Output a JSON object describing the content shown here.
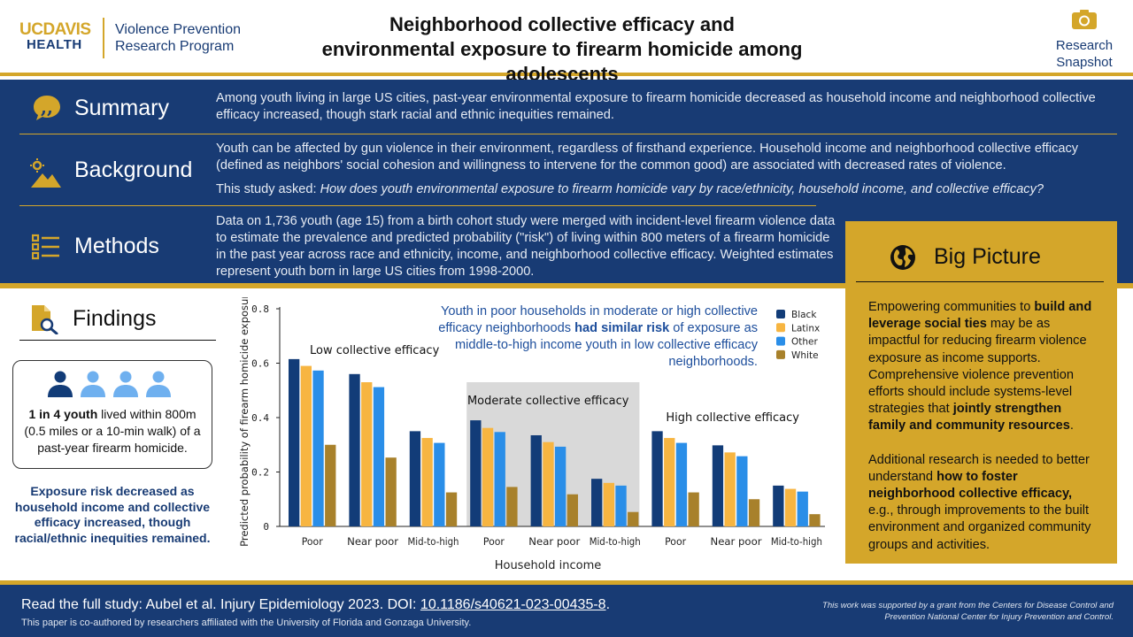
{
  "header": {
    "logo_top": "UCDAVIS",
    "logo_bottom": "HEALTH",
    "program_line1": "Violence Prevention",
    "program_line2": "Research Program",
    "title_line1": "Neighborhood collective efficacy and",
    "title_line2": "environmental exposure to firearm homicide among adolescents",
    "snapshot_line1": "Research",
    "snapshot_line2": "Snapshot"
  },
  "summary": {
    "label": "Summary",
    "text": "Among youth living in large US cities, past-year environmental exposure to firearm homicide decreased as household income and neighborhood collective efficacy increased, though stark racial and ethnic inequities remained."
  },
  "background": {
    "label": "Background",
    "text": "Youth can be affected by gun violence in their environment, regardless of firsthand experience. Household income and neighborhood collective efficacy (defined as neighbors' social cohesion and willingness to intervene for the common good) are associated with decreased rates of violence.",
    "question_prefix": "This study asked: ",
    "question": "How does youth environmental exposure to firearm homicide vary by race/ethnicity, household income, and collective efficacy?"
  },
  "methods": {
    "label": "Methods",
    "text": "Data on 1,736 youth (age 15) from a birth cohort study were merged with incident-level firearm violence data to estimate the prevalence and predicted probability (\"risk\") of living within 800 meters of a firearm homicide in the past year across race and ethnicity, income, and neighborhood collective efficacy. Weighted estimates represent youth born in large US cities from 1998-2000."
  },
  "big_picture": {
    "label": "Big Picture",
    "p1_a": "Empowering communities to ",
    "p1_b": "build and leverage social ties",
    "p1_c": " may be as impactful for reducing firearm violence exposure as income supports. Comprehensive violence prevention efforts should include systems-level strategies that ",
    "p1_d": "jointly strengthen family and community resources",
    "p1_e": ".",
    "p2_a": "Additional research is needed to better understand ",
    "p2_b": "how to foster neighborhood collective efficacy,",
    "p2_c": " e.g., through improvements to the built environment and organized community groups and activities."
  },
  "findings": {
    "label": "Findings",
    "youth_bold": "1 in 4 youth",
    "youth_rest": " lived within 800m (0.5 miles or a 10-min walk) of a past-year firearm homicide.",
    "exposure": "Exposure risk decreased as household income and collective efficacy increased, though racial/ethnic inequities remained."
  },
  "chart_note": {
    "a": "Youth in poor households in moderate or high collective efficacy neighborhoods ",
    "b": "had similar risk",
    "c": " of exposure as middle-to-high income youth in low collective efficacy neighborhoods."
  },
  "chart_data": {
    "type": "bar",
    "ylabel": "Predicted probability of firearm homicide exposure",
    "xlabel": "Household income",
    "ylim": [
      0,
      0.8
    ],
    "yticks": [
      "0",
      "0.2",
      "0.4",
      "0.6",
      "0.8"
    ],
    "groups": [
      {
        "name": "Low collective efficacy",
        "shaded": false,
        "categories": [
          "Poor",
          "Near poor",
          "Mid-to-high"
        ]
      },
      {
        "name": "Moderate collective efficacy",
        "shaded": true,
        "categories": [
          "Poor",
          "Near poor",
          "Mid-to-high"
        ]
      },
      {
        "name": "High collective efficacy",
        "shaded": false,
        "categories": [
          "Poor",
          "Near poor",
          "Mid-to-high"
        ]
      }
    ],
    "categories": [
      "Poor",
      "Near poor",
      "Mid-to-high",
      "Poor",
      "Near poor",
      "Mid-to-high",
      "Poor",
      "Near poor",
      "Mid-to-high"
    ],
    "series": [
      {
        "name": "Black",
        "color": "#123c78",
        "values": [
          0.615,
          0.56,
          0.35,
          0.39,
          0.335,
          0.175,
          0.35,
          0.298,
          0.15
        ]
      },
      {
        "name": "Latinx",
        "color": "#f7b541",
        "values": [
          0.59,
          0.53,
          0.325,
          0.362,
          0.31,
          0.16,
          0.325,
          0.272,
          0.138
        ]
      },
      {
        "name": "Other",
        "color": "#2a8ee8",
        "values": [
          0.573,
          0.512,
          0.307,
          0.347,
          0.293,
          0.15,
          0.307,
          0.258,
          0.128
        ]
      },
      {
        "name": "White",
        "color": "#a8812b",
        "values": [
          0.3,
          0.253,
          0.125,
          0.145,
          0.118,
          0.053,
          0.125,
          0.1,
          0.045
        ]
      }
    ],
    "legend_position": "top-right"
  },
  "footer": {
    "main_prefix": "Read the full study: Aubel et al. Injury Epidemiology 2023. DOI: ",
    "doi": "10.1186/s40621-023-00435-8",
    "main_suffix": ".",
    "sub": "This paper is co-authored by researchers affiliated with the University of Florida and Gonzaga University.",
    "grant": "This work was supported by a grant from the Centers for Disease Control and Prevention National Center for Injury Prevention and Control."
  }
}
